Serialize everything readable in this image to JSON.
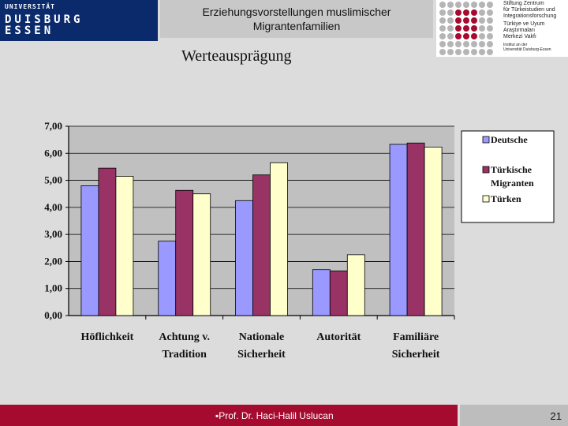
{
  "header": {
    "university_top": "UNIVERSITÄT",
    "university_mid": "DUISBURG",
    "university_bot": "ESSEN",
    "title_line1": "Erziehungsvorstellungen muslimischer",
    "title_line2": "Migrantenfamilien"
  },
  "logo": {
    "line1": "Stiftung Zentrum",
    "line2": "für Türkeistudien und",
    "line3": "Integrationsforschung",
    "line4": "Türkiye ve Uyum",
    "line5": "Araştırmaları",
    "line6": "Merkezi Vakfı",
    "line7": "Institut an der",
    "line8": "Universität Duisburg-Essen"
  },
  "slide_title": "Werteausprägung",
  "footer": {
    "text": "▪Prof. Dr. Haci-Halil Uslucan",
    "page": "21"
  },
  "colors": {
    "deutsche": "#9999ff",
    "tuerkische_migranten": "#993366",
    "tuerken": "#ffffcc",
    "plot_bg": "#c0c0c0",
    "header_blue": "#0a2a6b",
    "footer_red": "#a50a2f"
  },
  "chart_data": {
    "type": "bar",
    "categories": [
      [
        "Höflichkeit"
      ],
      [
        "Achtung v.",
        "Tradition"
      ],
      [
        "Nationale",
        "Sicherheit"
      ],
      [
        "Autorität"
      ],
      [
        "Familiäre",
        "Sicherheit"
      ]
    ],
    "series": [
      {
        "name": "Deutsche",
        "values": [
          4.8,
          2.75,
          4.25,
          1.7,
          6.33
        ],
        "color": "#9999ff"
      },
      {
        "name_lines": [
          "Türkische",
          "Migranten"
        ],
        "values": [
          5.45,
          4.63,
          5.2,
          1.65,
          6.38
        ],
        "color": "#993366"
      },
      {
        "name": "Türken",
        "values": [
          5.15,
          4.5,
          5.65,
          2.25,
          6.23
        ],
        "color": "#ffffcc"
      }
    ],
    "yticks": [
      "0,00",
      "1,00",
      "2,00",
      "3,00",
      "4,00",
      "5,00",
      "6,00",
      "7,00"
    ],
    "ylim": [
      0,
      7
    ],
    "grid": true,
    "legend": "right"
  }
}
